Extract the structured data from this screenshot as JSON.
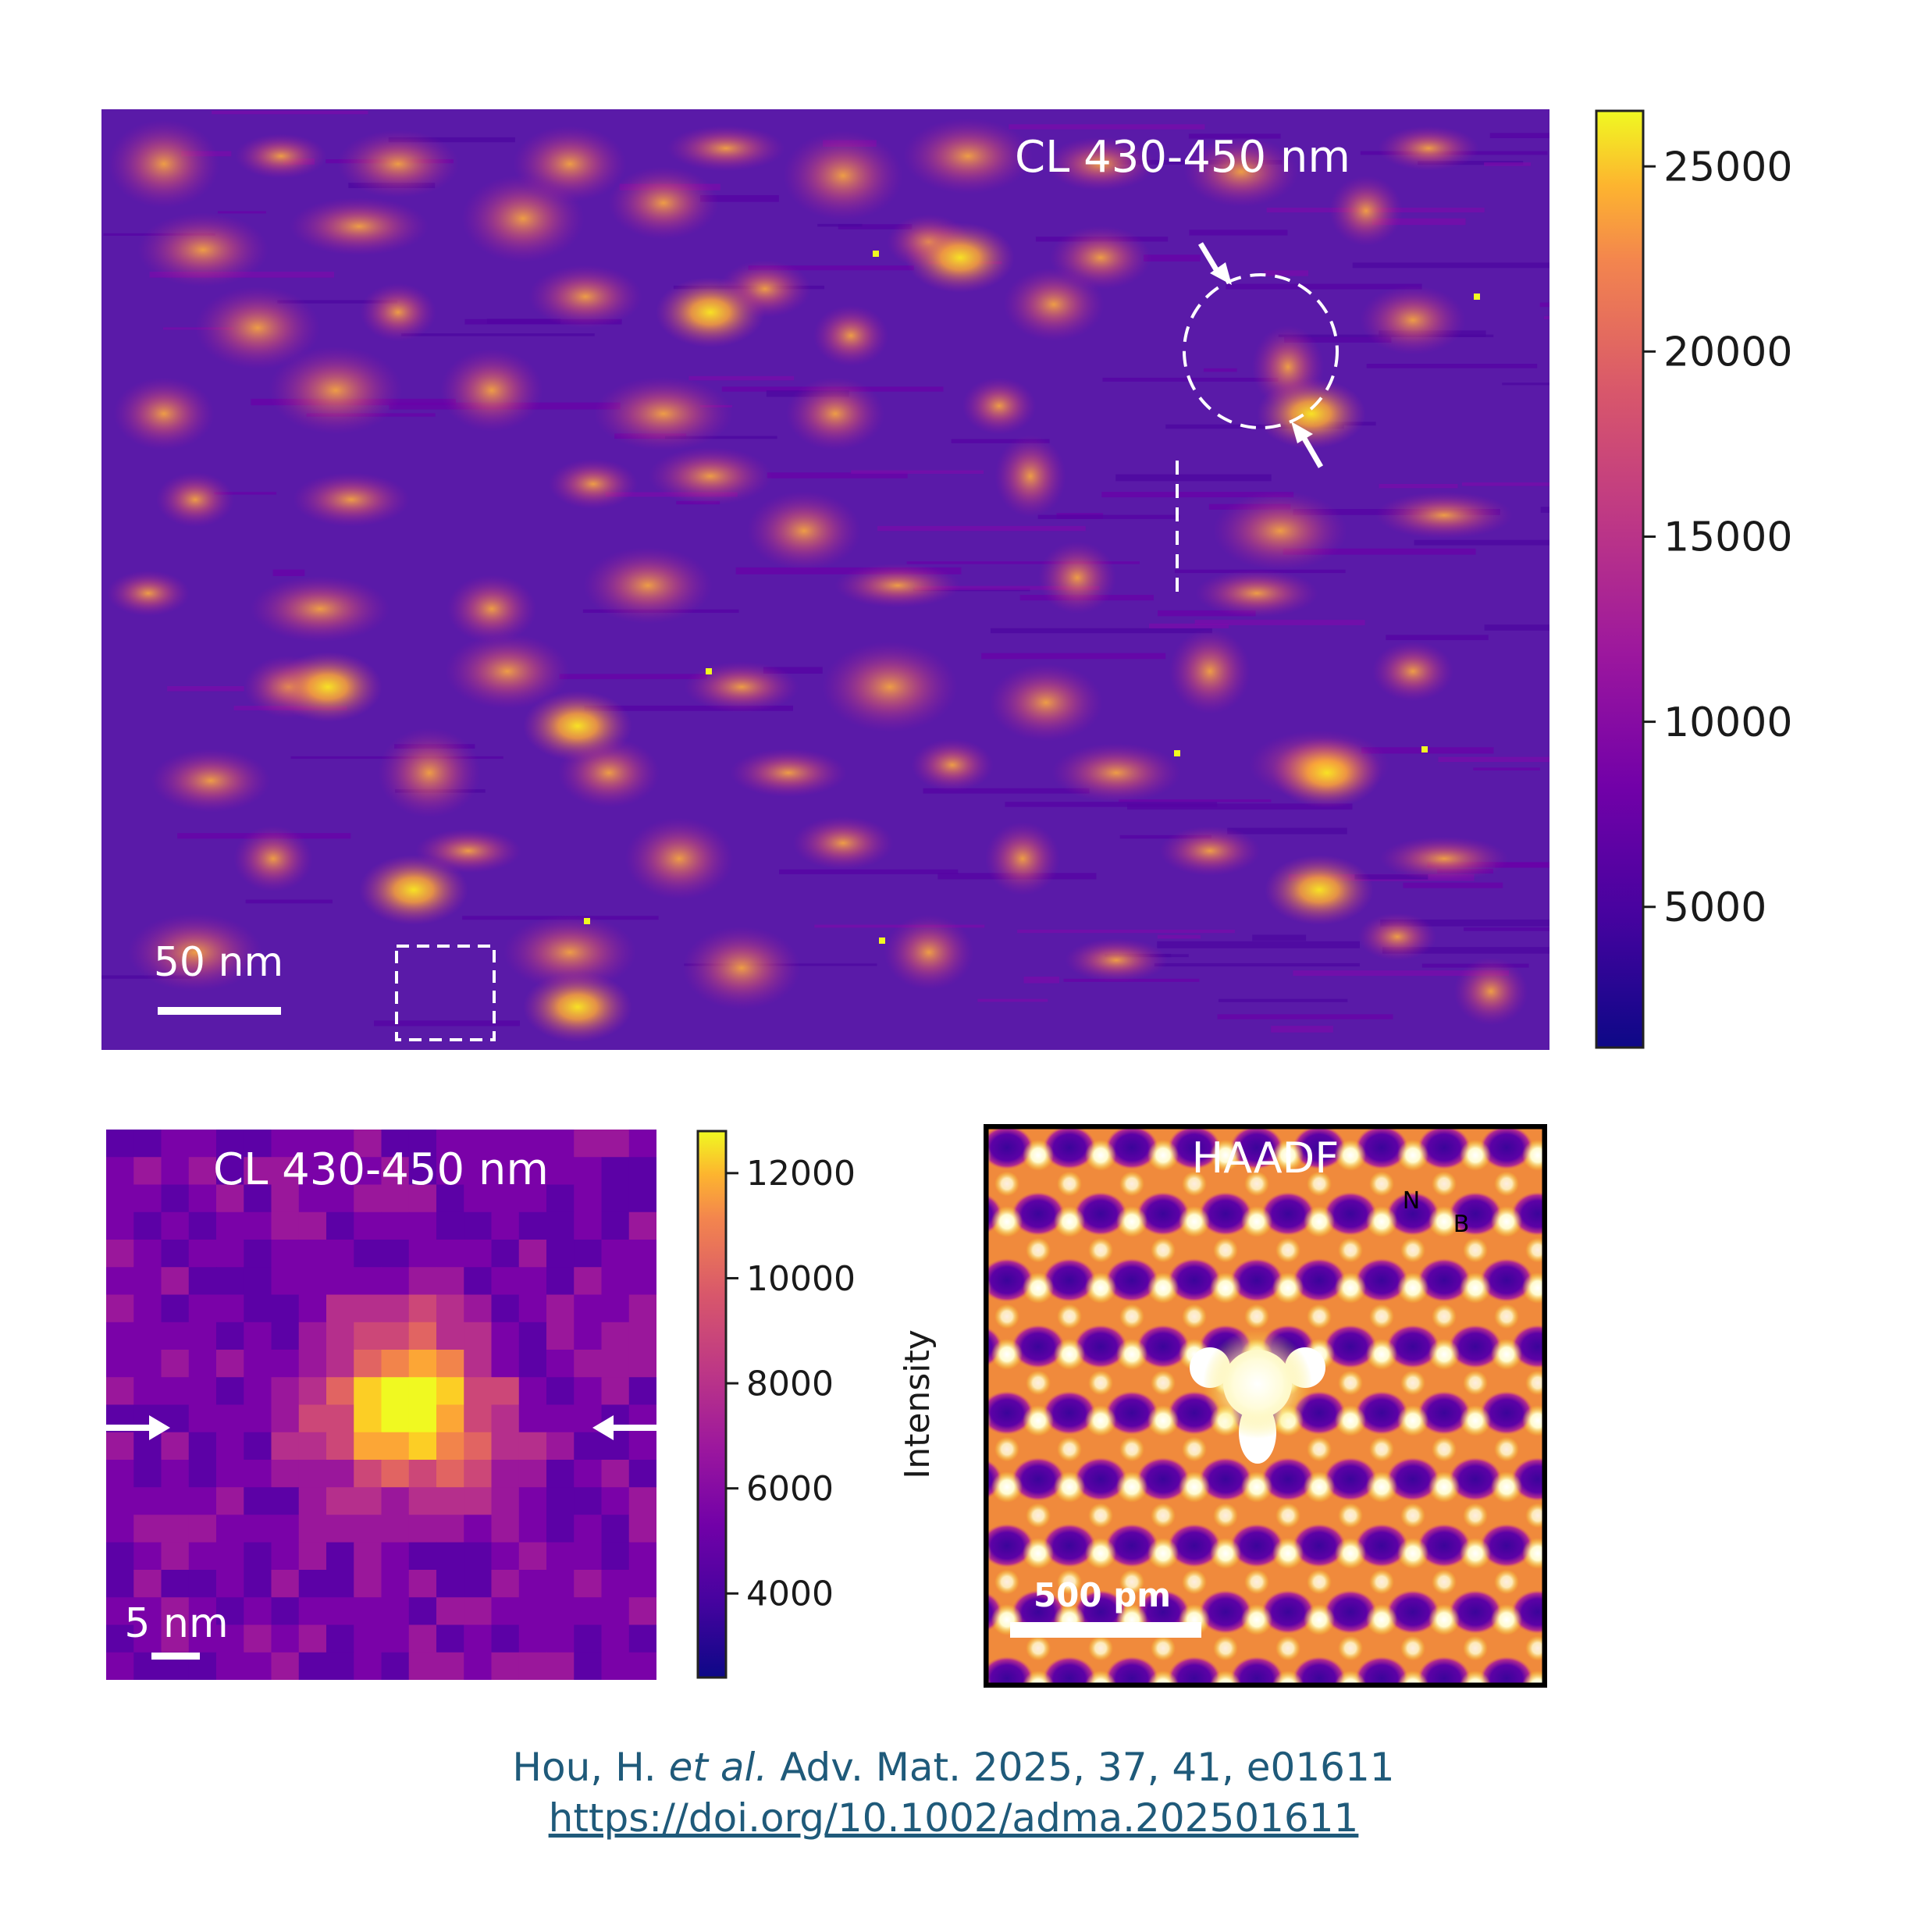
{
  "panel_main": {
    "label": "CL 430-450 nm",
    "scalebar": "50 nm"
  },
  "colorbar_main": {
    "ticks": [
      "25000",
      "20000",
      "15000",
      "10000",
      "5000"
    ],
    "tick_values": [
      25000,
      20000,
      15000,
      10000,
      5000
    ],
    "range": [
      1200,
      26500
    ]
  },
  "panel_zoom": {
    "label": "CL 430-450 nm",
    "scalebar": "5 nm"
  },
  "colorbar_zoom": {
    "ticks": [
      "12000",
      "10000",
      "8000",
      "6000",
      "4000"
    ],
    "tick_values": [
      12000,
      10000,
      8000,
      6000,
      4000
    ],
    "range": [
      2400,
      12800
    ],
    "axis_label": "Intensity"
  },
  "panel_haadf": {
    "label": "HAADF",
    "atom_n": "N",
    "atom_b": "B",
    "scalebar": "500 pm"
  },
  "citation": {
    "authors": "Hou, H.",
    "etal": "et al.",
    "journal": "Adv. Mat. 2025, 37, 41, e01611",
    "doi": "https://doi.org/10.1002/adma.202501611"
  },
  "colors": {
    "plasma_dark": "#0d0887",
    "plasma_purple": "#6a00a8",
    "plasma_magenta": "#b12a90",
    "plasma_orange": "#e16462",
    "plasma_yellow": "#f0f921",
    "caption": "#1f5a7a"
  }
}
